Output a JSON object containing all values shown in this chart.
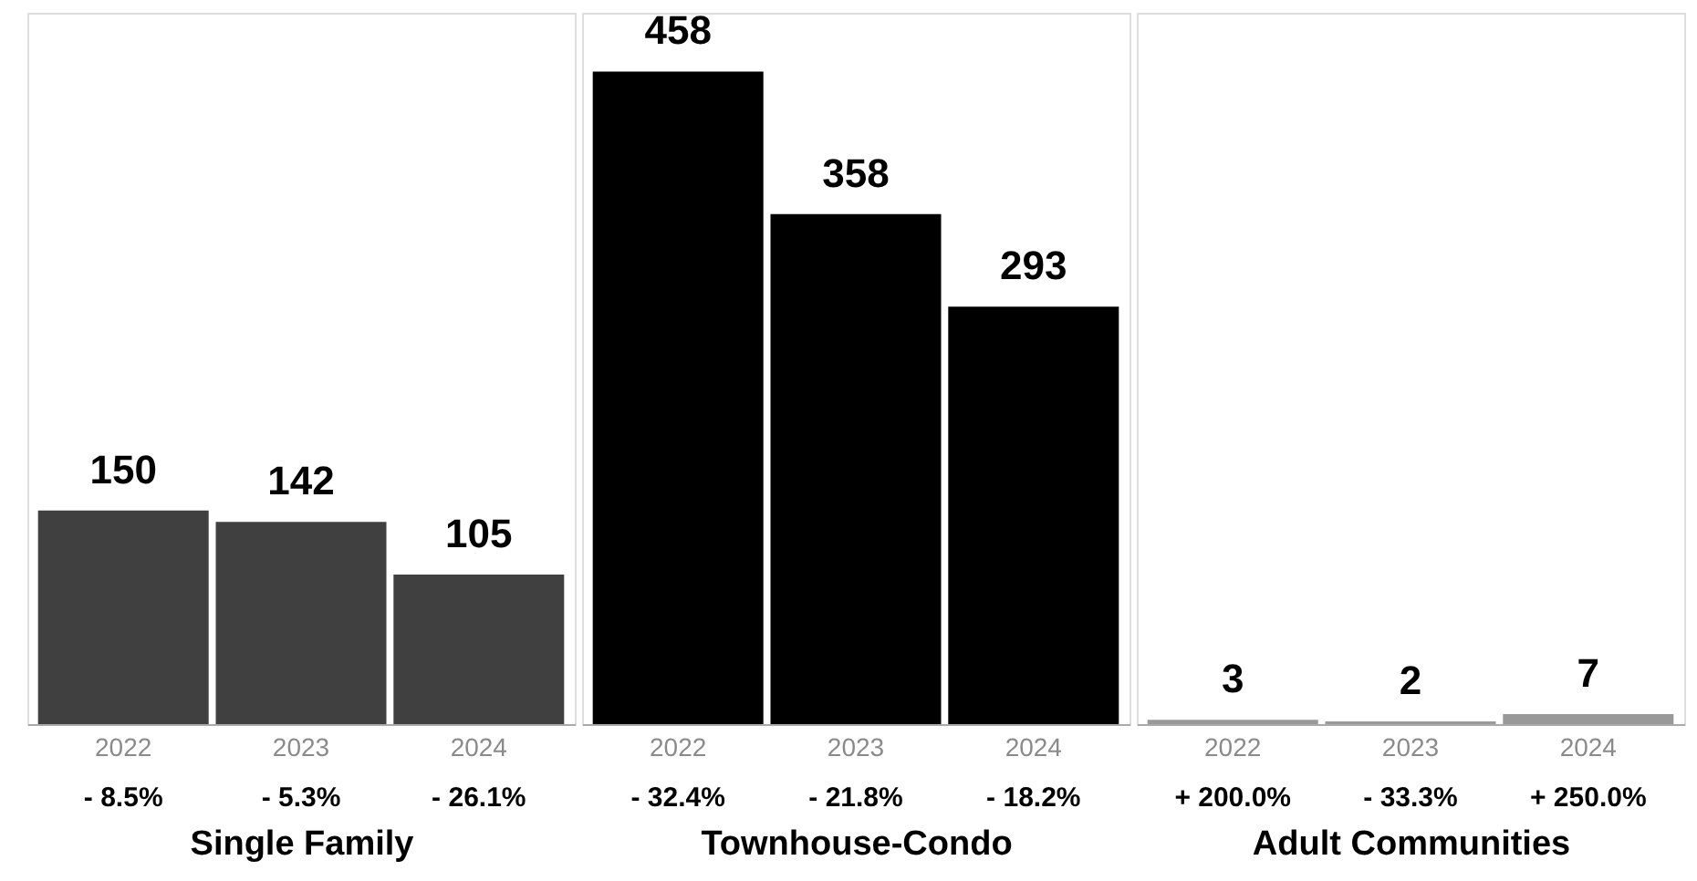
{
  "chart_data": [
    {
      "type": "bar",
      "xlabel": "Single Family",
      "categories": [
        "2022",
        "2023",
        "2024"
      ],
      "values": [
        150,
        142,
        105
      ],
      "color": "#404040",
      "data_labels": true,
      "annotations": [
        "- 8.5%",
        "- 5.3%",
        "- 26.1%"
      ]
    },
    {
      "type": "bar",
      "xlabel": "Townhouse-Condo",
      "categories": [
        "2022",
        "2023",
        "2024"
      ],
      "values": [
        458,
        358,
        293
      ],
      "color": "#000000",
      "data_labels": true,
      "annotations": [
        "- 32.4%",
        "- 21.8%",
        "- 18.2%"
      ]
    },
    {
      "type": "bar",
      "xlabel": "Adult Communities",
      "categories": [
        "2022",
        "2023",
        "2024"
      ],
      "values": [
        3,
        2,
        7
      ],
      "color": "#999999",
      "data_labels": true,
      "annotations": [
        "+ 200.0%",
        "- 33.3%",
        "+ 250.0%"
      ]
    }
  ]
}
